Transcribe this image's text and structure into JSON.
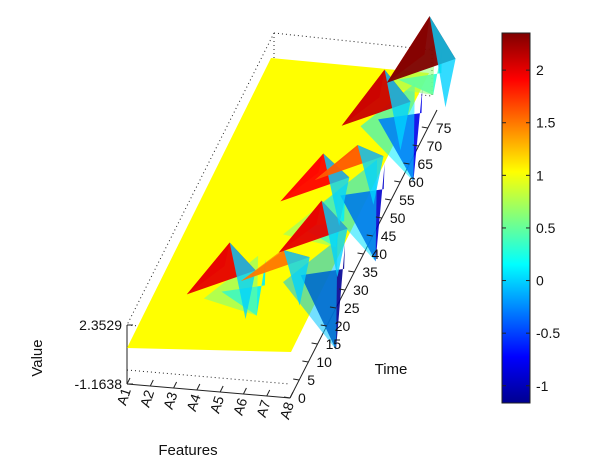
{
  "chart_data": {
    "type": "surface",
    "title": "",
    "xlabel": "Features",
    "ylabel": "Time",
    "zlabel": "Value",
    "feature_ticks": [
      "A1",
      "A2",
      "A3",
      "A4",
      "A5",
      "A6",
      "A7",
      "A8"
    ],
    "time_ticks": [
      "0",
      "5",
      "10",
      "15",
      "20",
      "25",
      "30",
      "35",
      "40",
      "45",
      "50",
      "55",
      "60",
      "65",
      "70",
      "75"
    ],
    "time_range": [
      0,
      80
    ],
    "value_ticks": [
      "2.3529",
      "-1.1638"
    ],
    "zlim": [
      -1.1638,
      2.3529
    ],
    "baseline_value": 1.0,
    "colormap": "jet",
    "colorbar": {
      "ticks": [
        "2",
        "1.5",
        "1",
        "0.5",
        "0",
        "-0.5",
        "-1"
      ],
      "tick_values": [
        2,
        1.5,
        1,
        0.5,
        0,
        -0.5,
        -1
      ],
      "range": [
        -1.1638,
        2.3529
      ]
    },
    "peaks": [
      {
        "feature": 4,
        "time": 18,
        "value": 2.0
      },
      {
        "feature": 6,
        "time": 22,
        "value": 1.5
      },
      {
        "feature": 7,
        "time": 30,
        "value": 2.0
      },
      {
        "feature": 6,
        "time": 44,
        "value": 1.9
      },
      {
        "feature": 7,
        "time": 50,
        "value": 1.6
      },
      {
        "feature": 7,
        "time": 65,
        "value": 2.1
      },
      {
        "feature": 8,
        "time": 77,
        "value": 2.35
      }
    ],
    "troughs": [
      {
        "feature": 5,
        "time": 20,
        "value": 0.1
      },
      {
        "feature": 8,
        "time": 25,
        "value": -1.1
      },
      {
        "feature": 7,
        "time": 38,
        "value": 0.2
      },
      {
        "feature": 8,
        "time": 47,
        "value": -0.9
      },
      {
        "feature": 8,
        "time": 68,
        "value": -0.8
      },
      {
        "feature": 8,
        "time": 79,
        "value": 0.3
      }
    ],
    "grid": false,
    "box": "dotted"
  }
}
